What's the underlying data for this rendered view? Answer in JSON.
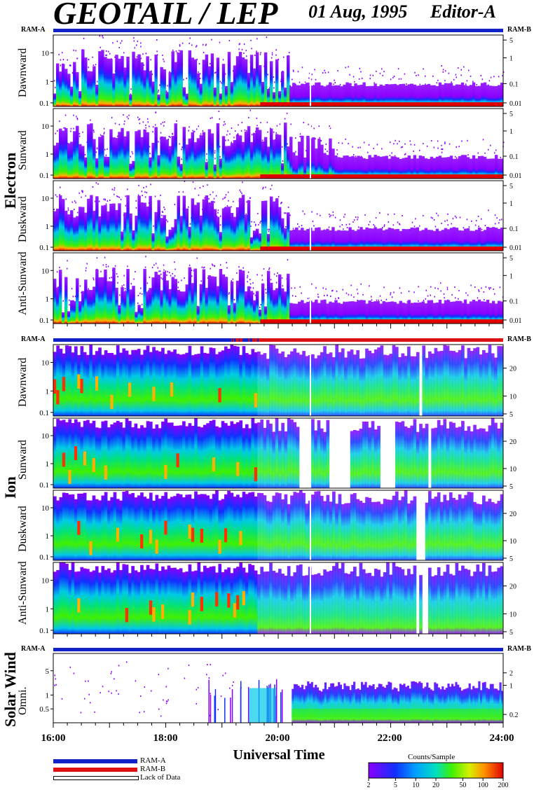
{
  "header": {
    "title": "GEOTAIL / LEP",
    "date": "01 Aug, 1995",
    "editor": "Editor-A"
  },
  "group_labels": {
    "electron": "Electron",
    "ion": "Ion",
    "solar_wind": "Solar Wind"
  },
  "ram_labels": {
    "a": "RAM-A",
    "b": "RAM-B"
  },
  "x_axis": {
    "label": "Universal Time",
    "ticks": [
      "16:00",
      "18:00",
      "20:00",
      "22:00",
      "24:00"
    ]
  },
  "legend": {
    "items": [
      {
        "label": "RAM-A",
        "color": "#1022c8"
      },
      {
        "label": "RAM-B",
        "color": "#dd1111"
      },
      {
        "label": "Lack of Data",
        "color": "#ffffff"
      }
    ]
  },
  "colorbar": {
    "title": "Counts/Sample",
    "ticks": [
      "2",
      "5",
      "10",
      "20",
      "50",
      "100",
      "200"
    ]
  },
  "chart_data": [
    {
      "type": "heatmap",
      "group": "Electron",
      "panel": "Dawnward",
      "x_range": [
        "16:00",
        "24:00"
      ],
      "left_ticks": [
        "10",
        "1",
        "0.1"
      ],
      "right_ticks": [
        "5",
        "1",
        "0.1",
        "0.01"
      ],
      "ram_mode": "RAM-A"
    },
    {
      "type": "heatmap",
      "group": "Electron",
      "panel": "Sunward",
      "x_range": [
        "16:00",
        "24:00"
      ],
      "left_ticks": [
        "10",
        "1",
        "0.1"
      ],
      "right_ticks": [
        "5",
        "1",
        "0.1",
        "0.01"
      ]
    },
    {
      "type": "heatmap",
      "group": "Electron",
      "panel": "Duskward",
      "x_range": [
        "16:00",
        "24:00"
      ],
      "left_ticks": [
        "10",
        "1",
        "0.1"
      ],
      "right_ticks": [
        "5",
        "1",
        "0.1",
        "0.01"
      ]
    },
    {
      "type": "heatmap",
      "group": "Electron",
      "panel": "Anti-Sunward",
      "x_range": [
        "16:00",
        "24:00"
      ],
      "left_ticks": [
        "10",
        "1",
        "0.1"
      ],
      "right_ticks": [
        "5",
        "1",
        "0.1",
        "0.01"
      ]
    },
    {
      "type": "heatmap",
      "group": "Ion",
      "panel": "Dawnward",
      "x_range": [
        "16:00",
        "24:00"
      ],
      "left_ticks": [
        "10",
        "1",
        "0.1"
      ],
      "right_ticks": [
        "20",
        "10",
        "5"
      ],
      "ram_mode": "RAM-A then RAM-B"
    },
    {
      "type": "heatmap",
      "group": "Ion",
      "panel": "Sunward",
      "x_range": [
        "16:00",
        "24:00"
      ],
      "left_ticks": [
        "10",
        "1",
        "0.1"
      ],
      "right_ticks": [
        "20",
        "10",
        "5"
      ]
    },
    {
      "type": "heatmap",
      "group": "Ion",
      "panel": "Duskward",
      "x_range": [
        "16:00",
        "24:00"
      ],
      "left_ticks": [
        "10",
        "1",
        "0.1"
      ],
      "right_ticks": [
        "20",
        "10",
        "5"
      ]
    },
    {
      "type": "heatmap",
      "group": "Ion",
      "panel": "Anti-Sunward",
      "x_range": [
        "16:00",
        "24:00"
      ],
      "left_ticks": [
        "10",
        "1",
        "0.1"
      ],
      "right_ticks": [
        "20",
        "10",
        "5"
      ]
    },
    {
      "type": "heatmap",
      "group": "Solar Wind",
      "panel": "Omni.",
      "x_range": [
        "16:00",
        "24:00"
      ],
      "left_ticks": [
        "5",
        "1",
        "0.5"
      ],
      "right_ticks": [
        "2",
        "1",
        "0.2"
      ],
      "ram_mode": "RAM-A"
    }
  ]
}
